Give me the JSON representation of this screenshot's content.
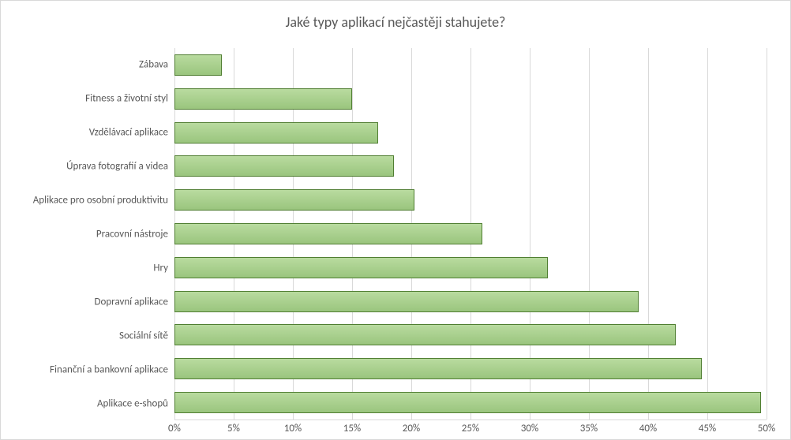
{
  "chart": {
    "type": "bar-horizontal",
    "title": "Jaké typy aplikací nejčastěji stahujete?",
    "title_fontsize": 18,
    "title_color": "#595959",
    "label_fontsize": 13,
    "label_color": "#595959",
    "background_color": "#ffffff",
    "border_color": "#d9d9d9",
    "grid_color": "#d9d9d9",
    "bar_fill_color": "#a9d18e",
    "bar_border_color": "#507e32",
    "bar_gradient_top": "#b9db9f",
    "bar_gradient_bottom": "#9ac57e",
    "xlim": [
      0,
      50
    ],
    "xtick_step": 5,
    "xtick_suffix": "%",
    "bar_height_ratio": 0.63,
    "categories": [
      "Zábava",
      "Fitness a životní styl",
      "Vzdělávací aplikace",
      "Úprava fotografií a videa",
      "Aplikace pro osobní produktivitu",
      "Pracovní nástroje",
      "Hry",
      "Dopravní aplikace",
      "Sociální sítě",
      "Finanční  a bankovní aplikace",
      "Aplikace e-shopů"
    ],
    "values": [
      4,
      15,
      17.2,
      18.5,
      20.3,
      26,
      31.5,
      39.2,
      42.3,
      44.5,
      49.5
    ]
  }
}
